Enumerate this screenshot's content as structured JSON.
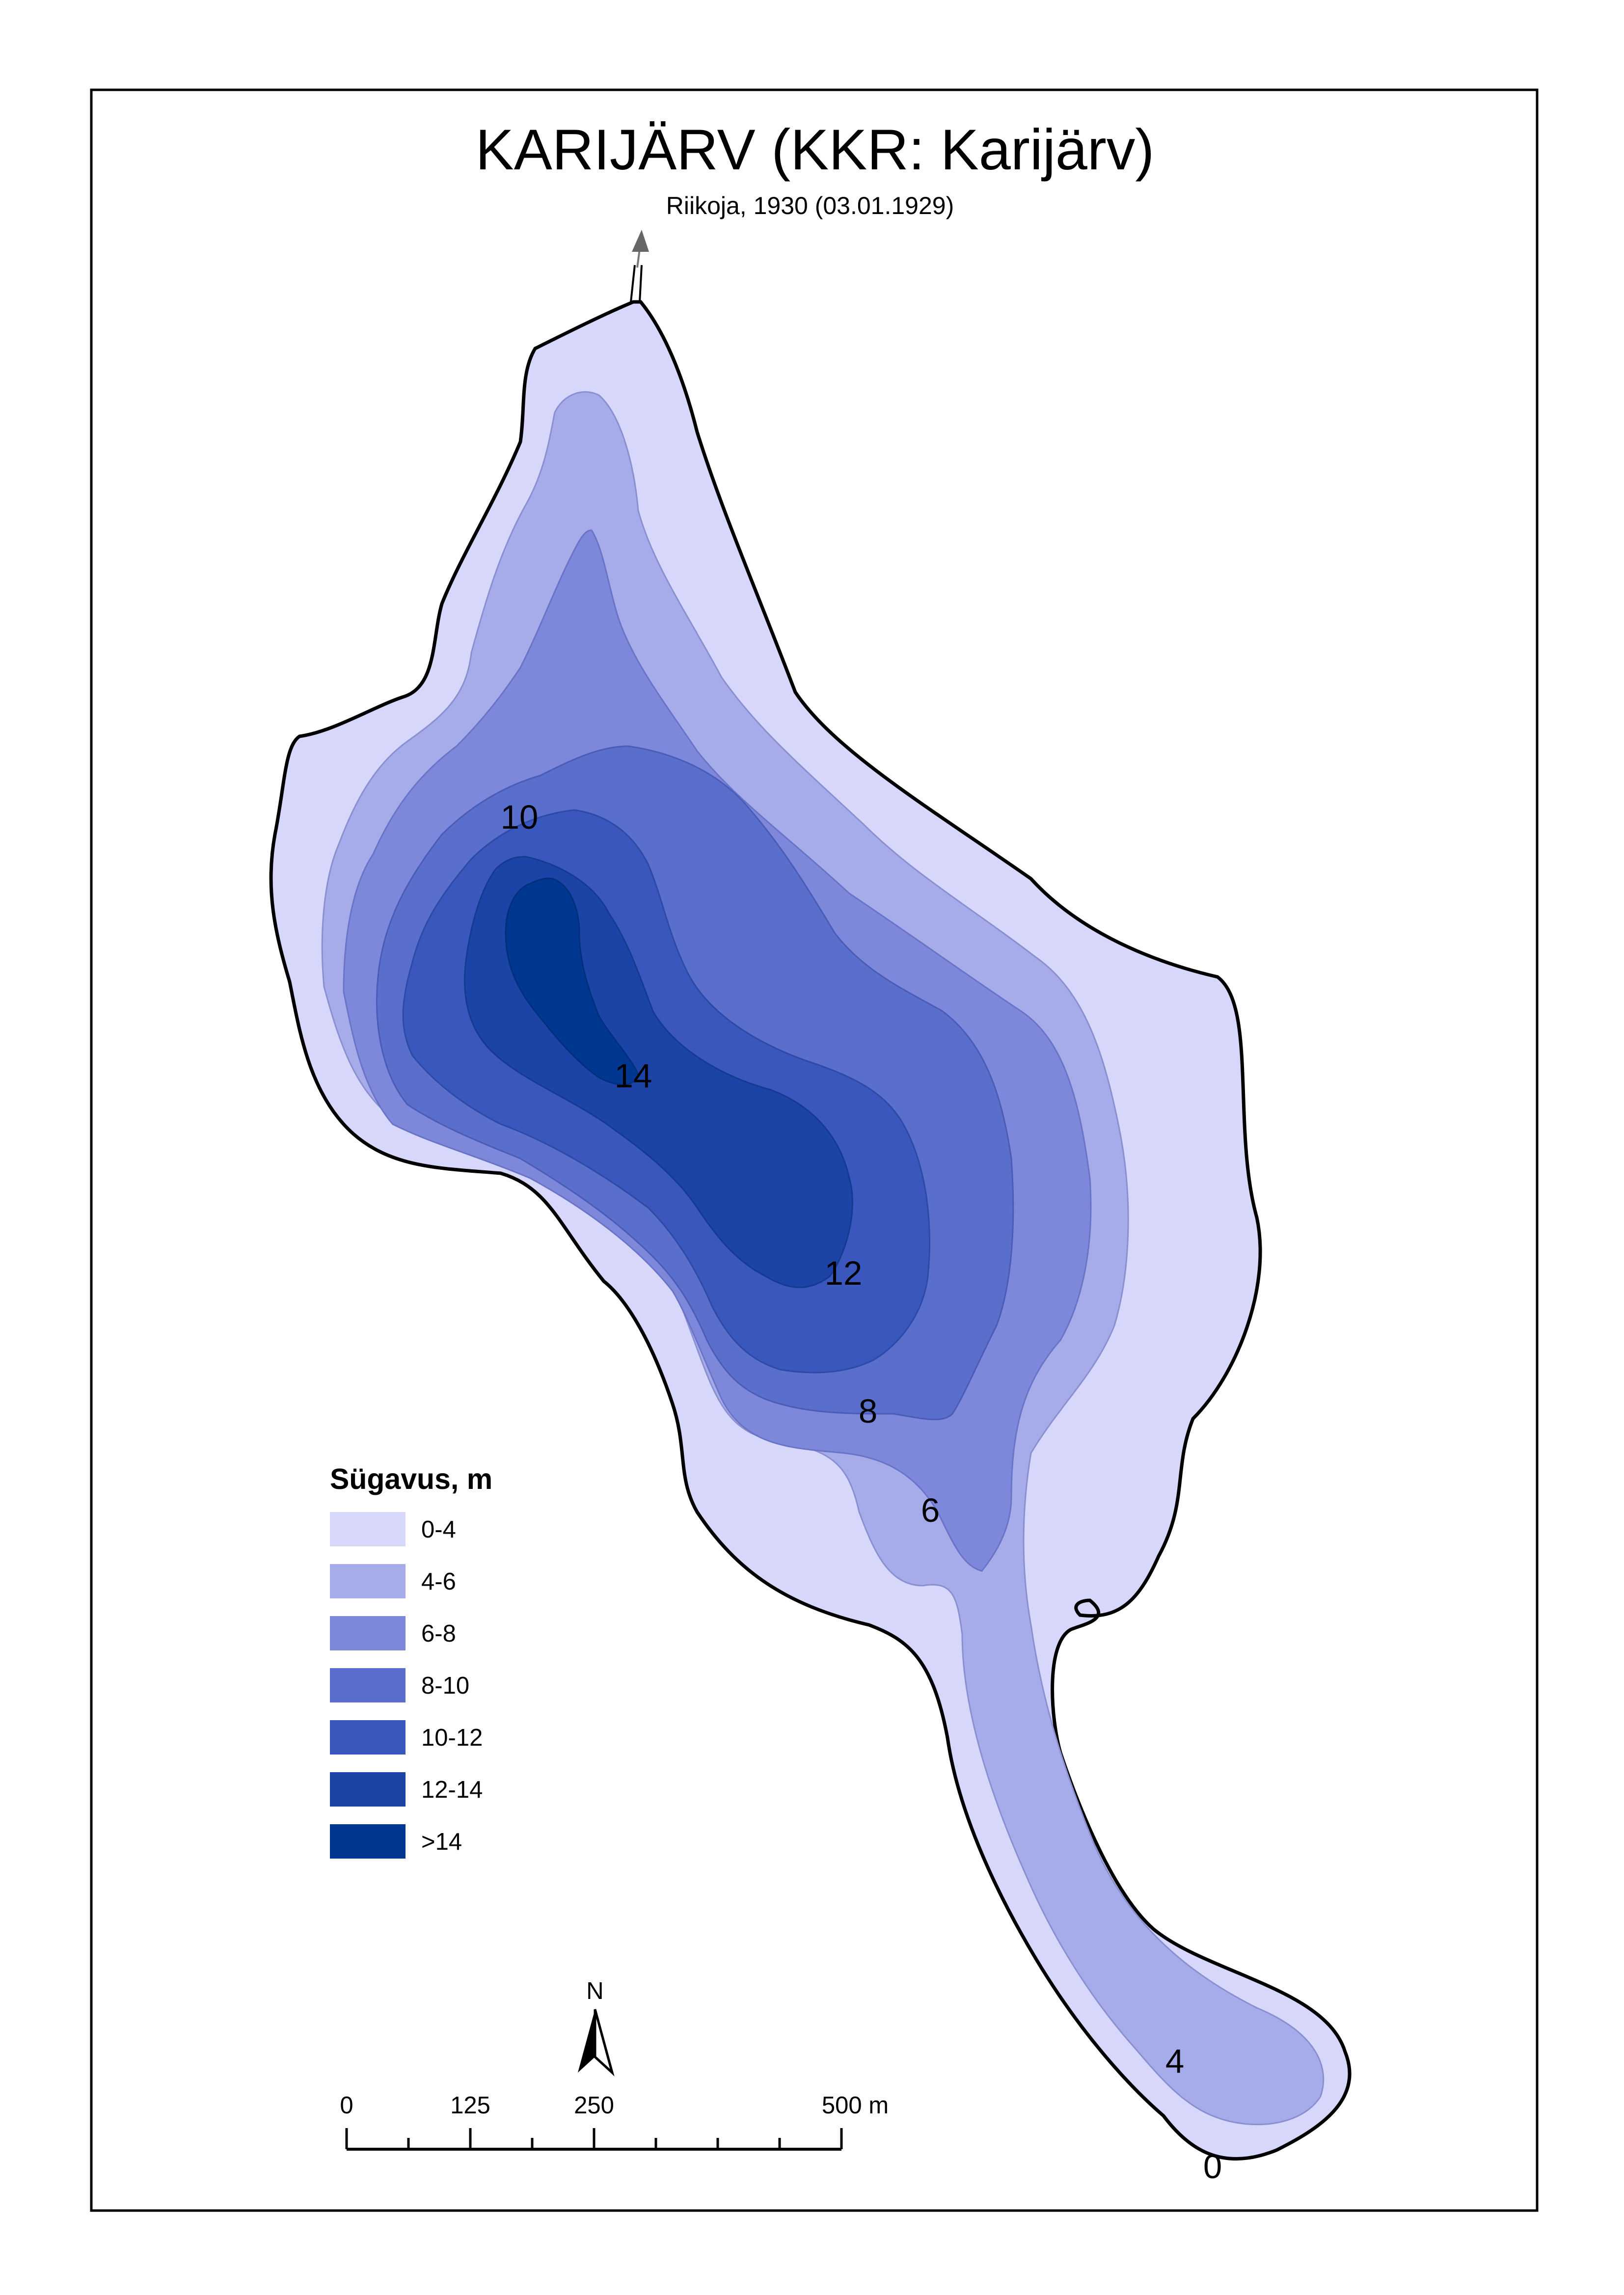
{
  "title": "KARIJÄRV (KKR: Karijärv)",
  "subtitle": "Riikoja, 1930 (03.01.1929)",
  "legend": {
    "title": "Sügavus, m",
    "items": [
      {
        "label": "0-4",
        "color": "#d7d7fb"
      },
      {
        "label": "4-6",
        "color": "#a6abea"
      },
      {
        "label": "6-8",
        "color": "#7e88da"
      },
      {
        "label": "8-10",
        "color": "#5a6ecc"
      },
      {
        "label": "10-12",
        "color": "#3957bc"
      },
      {
        "label": "12-14",
        "color": "#1b44a6"
      },
      {
        "label": ">14",
        "color": "#003791"
      }
    ]
  },
  "contour_labels": {
    "l10": "10",
    "l14": "14",
    "l12": "12",
    "l8": "8",
    "l6": "6",
    "l4": "4",
    "l0": "0"
  },
  "scale_bar": {
    "ticks": [
      "0",
      "125",
      "250",
      "500 m"
    ]
  },
  "north_arrow": {
    "label": "N",
    "icon": "north-arrow-icon"
  },
  "outflow_arrow": {
    "icon": "outflow-arrow-icon"
  }
}
